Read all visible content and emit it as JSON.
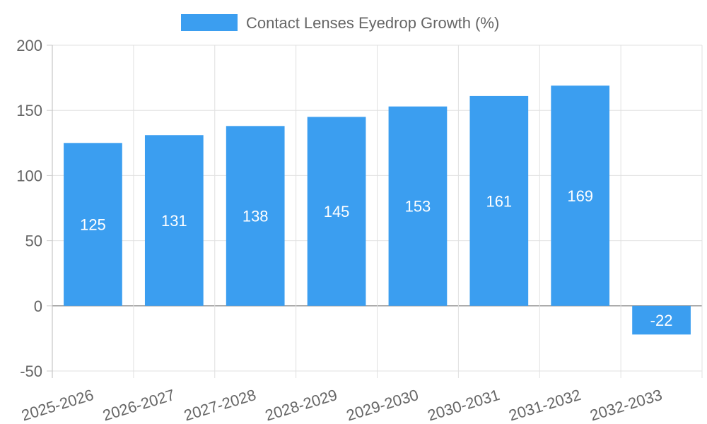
{
  "chart_data": {
    "type": "bar",
    "categories": [
      "2025-2026",
      "2026-2027",
      "2027-2028",
      "2028-2029",
      "2029-2030",
      "2030-2031",
      "2031-2032",
      "2032-2033"
    ],
    "series": [
      {
        "name": "Contact Lenses Eyedrop Growth (%)",
        "values": [
          125,
          131,
          138,
          145,
          153,
          161,
          169,
          -22
        ],
        "color": "#3b9ef0"
      }
    ],
    "ylim": [
      -50,
      200
    ],
    "yticks": [
      -50,
      0,
      50,
      100,
      150,
      200
    ],
    "grid": true,
    "legend_position": "top-center",
    "data_labels": true,
    "xlabel": "",
    "ylabel": ""
  }
}
